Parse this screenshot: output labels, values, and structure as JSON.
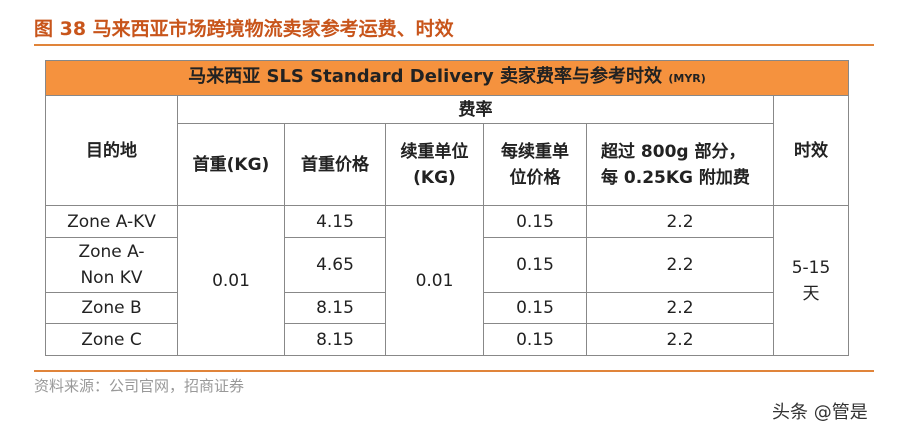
{
  "header": {
    "title": "图 38 马来西亚市场跨境物流卖家参考运费、时效"
  },
  "table": {
    "title": "马来西亚 SLS Standard Delivery 卖家费率与参考时效",
    "unit": "(MYR)",
    "group_header": "费率",
    "columns": [
      "目的地",
      "首重(KG)",
      "首重价格",
      "续重单位(KG)",
      "每续重单位价格",
      "超过 800g 部分，每 0.25KG 附加费",
      "时效"
    ],
    "first_weight": "0.01",
    "unit_weight": "0.01",
    "delivery_time": "5-15天",
    "rows": [
      [
        "Zone A-KV",
        "4.15",
        "0.15",
        "2.2"
      ],
      [
        "Zone A-Non KV",
        "4.65",
        "0.15",
        "2.2"
      ],
      [
        "Zone B",
        "8.15",
        "0.15",
        "2.2"
      ],
      [
        "Zone C",
        "8.15",
        "0.15",
        "2.2"
      ]
    ]
  },
  "footer": {
    "source": "资料来源：公司官网，招商证券",
    "watermark": "头条 @管是"
  }
}
